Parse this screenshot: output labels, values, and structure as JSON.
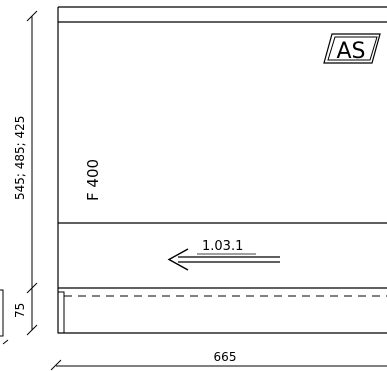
{
  "drawing": {
    "height_dimension_label": "545; 485; 425",
    "plinth_dimension_label": "75",
    "width_dimension_label": "665",
    "panel_label": "F 400",
    "arrow_label": "1.03.1",
    "logo_text": "AS"
  }
}
